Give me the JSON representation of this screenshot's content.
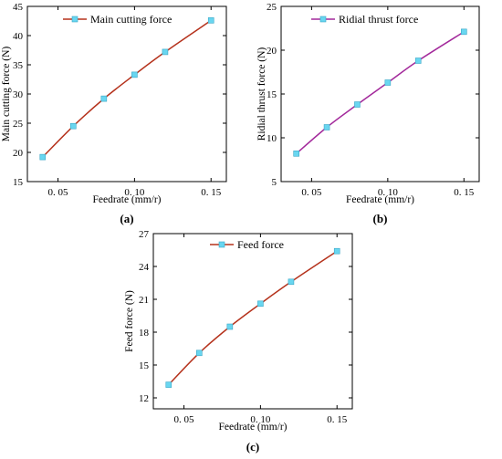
{
  "figure": {
    "panel_labels": [
      "(a)",
      "(b)",
      "(c)"
    ]
  },
  "colors": {
    "line_main": "#b5321c",
    "line_thrust": "#a3299b",
    "line_feed": "#b5321c",
    "marker": "#69d6f0",
    "marker_edge": "#3aa7c6",
    "axis": "#000000"
  },
  "chart_data": [
    {
      "type": "line",
      "panel": "(a)",
      "xlabel": "Feedrate (mm/r)",
      "ylabel": "Main cutting force (N)",
      "xlim": [
        0.03,
        0.16
      ],
      "ylim": [
        15,
        45
      ],
      "xticks": [
        0.05,
        0.1,
        0.15
      ],
      "xtick_labels": [
        "0. 05",
        "0. 10",
        "0. 15"
      ],
      "yticks": [
        15,
        20,
        25,
        30,
        35,
        40,
        45
      ],
      "ytick_labels": [
        "15",
        "20",
        "25",
        "30",
        "35",
        "40",
        "45"
      ],
      "legend_position": "top-center",
      "series": [
        {
          "name": "Main cutting force",
          "x": [
            0.04,
            0.06,
            0.08,
            0.1,
            0.12,
            0.15
          ],
          "y": [
            19.2,
            24.5,
            29.2,
            33.3,
            37.2,
            42.6
          ]
        }
      ]
    },
    {
      "type": "line",
      "panel": "(b)",
      "xlabel": "Feedrate (mm/r)",
      "ylabel": "Ridial thrust force (N)",
      "xlim": [
        0.03,
        0.16
      ],
      "ylim": [
        5,
        25
      ],
      "xticks": [
        0.05,
        0.1,
        0.15
      ],
      "xtick_labels": [
        "0. 05",
        "0. 10",
        "0. 15"
      ],
      "yticks": [
        5,
        10,
        15,
        20,
        25
      ],
      "ytick_labels": [
        "5",
        "10",
        "15",
        "20",
        "25"
      ],
      "legend_position": "top-center",
      "series": [
        {
          "name": "Ridial thrust force",
          "x": [
            0.04,
            0.06,
            0.08,
            0.1,
            0.12,
            0.15
          ],
          "y": [
            8.2,
            11.2,
            13.8,
            16.3,
            18.8,
            22.1
          ]
        }
      ]
    },
    {
      "type": "line",
      "panel": "(c)",
      "xlabel": "Feedrate (mm/r)",
      "ylabel": "Feed force (N)",
      "xlim": [
        0.03,
        0.16
      ],
      "ylim": [
        11,
        27
      ],
      "xticks": [
        0.05,
        0.1,
        0.15
      ],
      "xtick_labels": [
        "0. 05",
        "0. 10",
        "0. 15"
      ],
      "yticks": [
        12,
        15,
        18,
        21,
        24,
        27
      ],
      "ytick_labels": [
        "12",
        "15",
        "18",
        "21",
        "24",
        "27"
      ],
      "legend_position": "top-center",
      "series": [
        {
          "name": "Feed force",
          "x": [
            0.04,
            0.06,
            0.08,
            0.1,
            0.12,
            0.15
          ],
          "y": [
            13.2,
            16.1,
            18.5,
            20.6,
            22.6,
            25.4
          ]
        }
      ]
    }
  ]
}
